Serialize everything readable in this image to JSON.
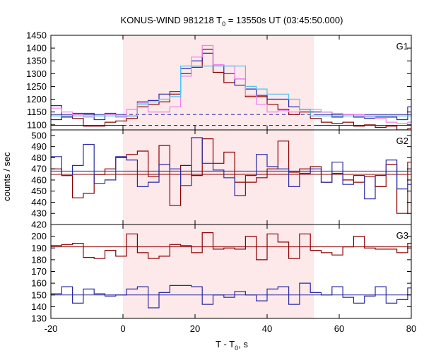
{
  "chart_data": {
    "type": "line",
    "title": "KONUS-WIND 981218 T",
    "title_sub": "0",
    "title_rest": " = 13550s UT (03:45:50.000)",
    "xlabel": "T - T",
    "xlabel_sub": "0",
    "xlabel_rest": ", s",
    "ylabel": "counts / sec",
    "xlim": [
      -20,
      80
    ],
    "xticks": [
      -20,
      0,
      20,
      40,
      60,
      80
    ],
    "shaded_interval": [
      0,
      53
    ],
    "colors": {
      "red": "#8b0000",
      "blue": "#2a2aa0",
      "pink": "#ee82ee",
      "cyan": "#4fc3f7",
      "shade": "#fde8ea"
    },
    "panels": [
      {
        "label": "G1",
        "ylim": [
          1080,
          1450
        ],
        "yticks": [
          1100,
          1150,
          1200,
          1250,
          1300,
          1350,
          1400,
          1450
        ],
        "bin_edges": [
          -20,
          -17,
          -14,
          -11,
          -8,
          -5,
          -2,
          1,
          4,
          7,
          10,
          13,
          16,
          19,
          22,
          25,
          28,
          31,
          34,
          37,
          40,
          43,
          46,
          49,
          52,
          55,
          58,
          61,
          64,
          67,
          70,
          73,
          76,
          79,
          80
        ],
        "series": [
          {
            "color": "red",
            "values": [
              1120,
              1130,
              1125,
              1095,
              1095,
              1110,
              1115,
              1125,
              1170,
              1180,
              1190,
              1220,
              1300,
              1325,
              1395,
              1305,
              1265,
              1280,
              1210,
              1210,
              1180,
              1160,
              1140,
              1150,
              1125,
              1110,
              1105,
              1110,
              1095,
              1100,
              1090,
              1095,
              1080,
              1085
            ]
          },
          {
            "color": "blue",
            "values": [
              1175,
              1130,
              1145,
              1145,
              1120,
              1145,
              1130,
              1135,
              1190,
              1195,
              1220,
              1230,
              1320,
              1350,
              1380,
              1335,
              1300,
              1255,
              1240,
              1215,
              1200,
              1200,
              1170,
              1160,
              1150,
              1150,
              1130,
              1140,
              1130,
              1125,
              1130,
              1130,
              1120,
              1170
            ]
          },
          {
            "color": "pink",
            "values": [
              1165,
              1150,
              1140,
              1130,
              1135,
              1140,
              1130,
              1160,
              1185,
              1150,
              1150,
              1170,
              1290,
              1365,
              1410,
              1335,
              1330,
              1280,
              1215,
              1180,
              1150,
              1155,
              1150,
              1160,
              1160,
              1150,
              1145,
              1140,
              1140,
              1130,
              1125,
              1110,
              1105,
              1110
            ]
          },
          {
            "color": "cyan",
            "values": [
              1135,
              1135,
              1135,
              1135,
              1135,
              1135,
              1135,
              1135,
              1180,
              1190,
              1200,
              1210,
              1330,
              1330,
              1330,
              1330,
              1330,
              1330,
              1250,
              1240,
              1220,
              1220,
              1200,
              1160,
              1135,
              1135,
              1135,
              1135,
              1135,
              1135,
              1135,
              1135,
              1135,
              1135
            ]
          }
        ],
        "levels": [
          {
            "color": "blue",
            "value": 1140,
            "from": -20,
            "to": 80,
            "dashed_from": 0,
            "dashed_to": 53
          },
          {
            "color": "red",
            "value": 1098,
            "from": -20,
            "to": 80,
            "dashed_from": 0,
            "dashed_to": 53
          }
        ]
      },
      {
        "label": "G2",
        "ylim": [
          420,
          505
        ],
        "yticks": [
          420,
          430,
          440,
          450,
          460,
          470,
          480,
          490,
          500
        ],
        "bin_edges": [
          -20,
          -17,
          -14,
          -11,
          -8,
          -5,
          -2,
          1,
          4,
          7,
          10,
          13,
          16,
          19,
          22,
          25,
          28,
          31,
          34,
          37,
          40,
          43,
          46,
          49,
          52,
          55,
          58,
          61,
          64,
          67,
          70,
          73,
          76,
          79,
          80
        ],
        "series": [
          {
            "color": "red",
            "values": [
              470,
              464,
              444,
              448,
              465,
              470,
              480,
              483,
              486,
              463,
              491,
              437,
              473,
              464,
              497,
              475,
              485,
              458,
              458,
              462,
              470,
              495,
              467,
              470,
              472,
              458,
              466,
              460,
              458,
              463,
              454,
              474,
              430,
              476
            ]
          },
          {
            "color": "blue",
            "values": [
              481,
              464,
              473,
              492,
              457,
              460,
              481,
              478,
              454,
              458,
              474,
              470,
              455,
              498,
              475,
              469,
              462,
              446,
              464,
              483,
              472,
              470,
              454,
              466,
              470,
              458,
              476,
              456,
              464,
              443,
              464,
              478,
              452,
              456
            ]
          }
        ],
        "levels": [
          {
            "color": "blue",
            "value": 468,
            "from": -20,
            "to": 80
          },
          {
            "color": "red",
            "value": 465,
            "from": -20,
            "to": 80
          }
        ]
      },
      {
        "label": "G3",
        "ylim": [
          130,
          210
        ],
        "yticks": [
          130,
          140,
          150,
          160,
          170,
          180,
          190,
          200
        ],
        "bin_edges": [
          -20,
          -17,
          -14,
          -11,
          -8,
          -5,
          -2,
          1,
          4,
          7,
          10,
          13,
          16,
          19,
          22,
          25,
          28,
          31,
          34,
          37,
          40,
          43,
          46,
          49,
          52,
          55,
          58,
          61,
          64,
          67,
          70,
          73,
          76,
          79,
          80
        ],
        "series": [
          {
            "color": "red",
            "values": [
              192,
              193,
              194,
              182,
              181,
              188,
              183,
              202,
              186,
              181,
              183,
              193,
              192,
              186,
              203,
              189,
              190,
              189,
              200,
              180,
              202,
              195,
              181,
              202,
              188,
              186,
              184,
              191,
              200,
              190,
              189,
              189,
              186,
              194
            ]
          },
          {
            "color": "blue",
            "values": [
              151,
              157,
              143,
              155,
              151,
              149,
              150,
              155,
              157,
              139,
              152,
              158,
              158,
              157,
              142,
              150,
              148,
              153,
              150,
              145,
              155,
              157,
              142,
              160,
              152,
              150,
              157,
              148,
              143,
              149,
              157,
              143,
              146,
              156
            ]
          }
        ],
        "levels": [
          {
            "color": "red",
            "value": 191,
            "from": -20,
            "to": 80
          },
          {
            "color": "blue",
            "value": 150,
            "from": -20,
            "to": 80
          }
        ]
      }
    ]
  }
}
